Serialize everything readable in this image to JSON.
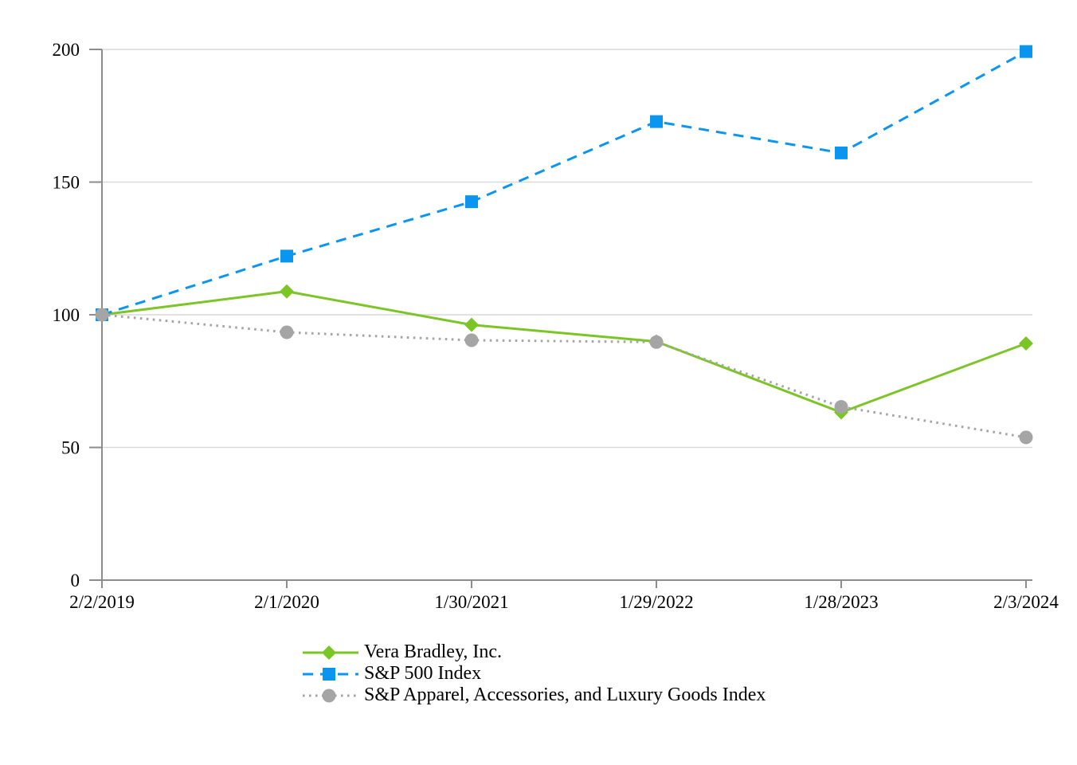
{
  "chart_data": {
    "type": "line",
    "title": "",
    "categories": [
      "2/2/2019",
      "2/1/2020",
      "1/30/2021",
      "1/29/2022",
      "1/28/2023",
      "2/3/2024"
    ],
    "series": [
      {
        "name": "Vera Bradley, Inc.",
        "values": [
          100,
          108.8,
          96.2,
          89.9,
          63.2,
          89.2
        ],
        "color": "#7CC526",
        "marker": "diamond",
        "line_style": "solid"
      },
      {
        "name": "S&P 500 Index",
        "values": [
          100,
          122.1,
          142.6,
          172.8,
          161.0,
          199.2
        ],
        "color": "#0A96F0",
        "marker": "square",
        "line_style": "dashed"
      },
      {
        "name": "S&P Apparel, Accessories, and Luxury Goods Index",
        "values": [
          100,
          93.4,
          90.4,
          89.7,
          65.3,
          53.8
        ],
        "color": "#A5A5A5",
        "marker": "circle",
        "line_style": "dotted"
      }
    ],
    "xlabel": "",
    "ylabel": "",
    "ylim": [
      0,
      200
    ],
    "yticks": [
      0,
      50,
      100,
      150,
      200
    ],
    "grid": "horizontal",
    "legend_position": "bottom-left",
    "colors": {
      "axis": "#8C8C8C",
      "gridline": "#D9D9D9",
      "text": "#000000",
      "background": "#FFFFFF"
    }
  }
}
